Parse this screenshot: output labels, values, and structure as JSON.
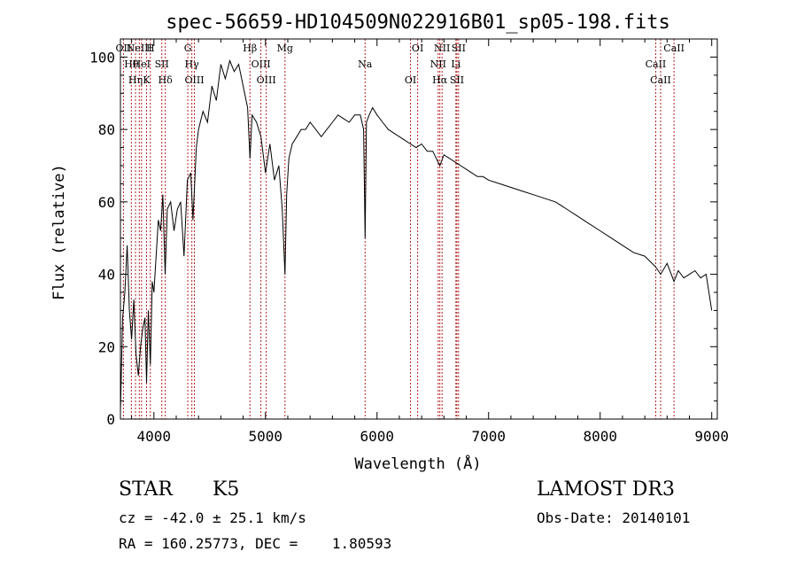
{
  "chart_data": {
    "type": "line",
    "title": "spec-56659-HD104509N022916B01_sp05-198.fits",
    "xlabel": "Wavelength (Å)",
    "ylabel": "Flux (relative)",
    "xlim": [
      3700,
      9050
    ],
    "ylim": [
      0,
      105
    ],
    "xticks": [
      4000,
      5000,
      6000,
      7000,
      8000,
      9000
    ],
    "yticks": [
      0,
      20,
      40,
      60,
      80,
      100
    ],
    "series": [
      {
        "name": "flux",
        "x": [
          3700,
          3720,
          3740,
          3760,
          3780,
          3800,
          3820,
          3840,
          3860,
          3880,
          3900,
          3920,
          3934,
          3950,
          3968,
          3985,
          4000,
          4020,
          4040,
          4060,
          4080,
          4101,
          4120,
          4150,
          4180,
          4210,
          4240,
          4270,
          4300,
          4330,
          4350,
          4380,
          4400,
          4440,
          4480,
          4520,
          4560,
          4600,
          4640,
          4680,
          4720,
          4760,
          4800,
          4840,
          4861,
          4880,
          4920,
          4960,
          5000,
          5040,
          5080,
          5120,
          5150,
          5175,
          5190,
          5210,
          5240,
          5280,
          5320,
          5360,
          5400,
          5450,
          5500,
          5550,
          5600,
          5650,
          5700,
          5750,
          5800,
          5850,
          5880,
          5893,
          5905,
          5930,
          5960,
          6000,
          6050,
          6100,
          6150,
          6200,
          6250,
          6300,
          6350,
          6400,
          6450,
          6500,
          6563,
          6600,
          6650,
          6700,
          6750,
          6800,
          6850,
          6900,
          6950,
          7000,
          7100,
          7200,
          7300,
          7400,
          7500,
          7600,
          7700,
          7800,
          7900,
          8000,
          8100,
          8200,
          8300,
          8400,
          8498,
          8542,
          8600,
          8662,
          8700,
          8750,
          8800,
          8850,
          8900,
          8950,
          9000
        ],
        "y": [
          2,
          28,
          35,
          48,
          30,
          22,
          33,
          18,
          12,
          20,
          25,
          28,
          10,
          30,
          15,
          38,
          35,
          45,
          55,
          52,
          62,
          40,
          58,
          60,
          52,
          58,
          60,
          45,
          66,
          68,
          55,
          75,
          80,
          85,
          82,
          92,
          88,
          98,
          94,
          99,
          96,
          98,
          92,
          86,
          72,
          84,
          82,
          78,
          68,
          76,
          66,
          70,
          58,
          40,
          62,
          72,
          76,
          78,
          80,
          80,
          82,
          80,
          78,
          80,
          82,
          84,
          83,
          82,
          84,
          84,
          80,
          50,
          82,
          84,
          86,
          84,
          82,
          80,
          79,
          78,
          77,
          76,
          75,
          76,
          74,
          74,
          70,
          73,
          72,
          71,
          70,
          69,
          68,
          67,
          67,
          66,
          65,
          64,
          63,
          62,
          61,
          60,
          58,
          56,
          54,
          52,
          50,
          48,
          46,
          45,
          42,
          40,
          43,
          38,
          41,
          39,
          40,
          41,
          39,
          40,
          30
        ]
      }
    ],
    "lines": [
      {
        "wl": 3727,
        "label": "OII"
      },
      {
        "wl": 3798,
        "label": "Hθ"
      },
      {
        "wl": 3835,
        "label": "Hη"
      },
      {
        "wl": 3869,
        "label": "NeIII"
      },
      {
        "wl": 3889,
        "label": "HeI"
      },
      {
        "wl": 3934,
        "label": "K"
      },
      {
        "wl": 3968,
        "label": "H"
      },
      {
        "wl": 4071,
        "label": "SII"
      },
      {
        "wl": 4102,
        "label": "Hδ"
      },
      {
        "wl": 4304,
        "label": "G"
      },
      {
        "wl": 4340,
        "label": "Hγ"
      },
      {
        "wl": 4363,
        "label": "OIII"
      },
      {
        "wl": 4861,
        "label": "Hβ"
      },
      {
        "wl": 4959,
        "label": "OIII"
      },
      {
        "wl": 5007,
        "label": "OIII"
      },
      {
        "wl": 5175,
        "label": "Mg"
      },
      {
        "wl": 5893,
        "label": "Na"
      },
      {
        "wl": 6300,
        "label": "OI"
      },
      {
        "wl": 6364,
        "label": "OI"
      },
      {
        "wl": 6548,
        "label": "NII"
      },
      {
        "wl": 6563,
        "label": "Hα"
      },
      {
        "wl": 6583,
        "label": "NII"
      },
      {
        "wl": 6707,
        "label": "Li"
      },
      {
        "wl": 6716,
        "label": "SII"
      },
      {
        "wl": 6731,
        "label": "SII"
      },
      {
        "wl": 8498,
        "label": "CaII"
      },
      {
        "wl": 8542,
        "label": "CaII"
      },
      {
        "wl": 8662,
        "label": "CaII"
      }
    ],
    "line_color": "#b22222",
    "spectrum_color": "#000000"
  },
  "info": {
    "class": "STAR",
    "subclass": "K5",
    "survey": "LAMOST DR3",
    "cz": "cz = -42.0 ± 25.1 km/s",
    "obs_date": "Obs-Date: 20140101",
    "radec": "RA = 160.25773, DEC =    1.80593"
  }
}
